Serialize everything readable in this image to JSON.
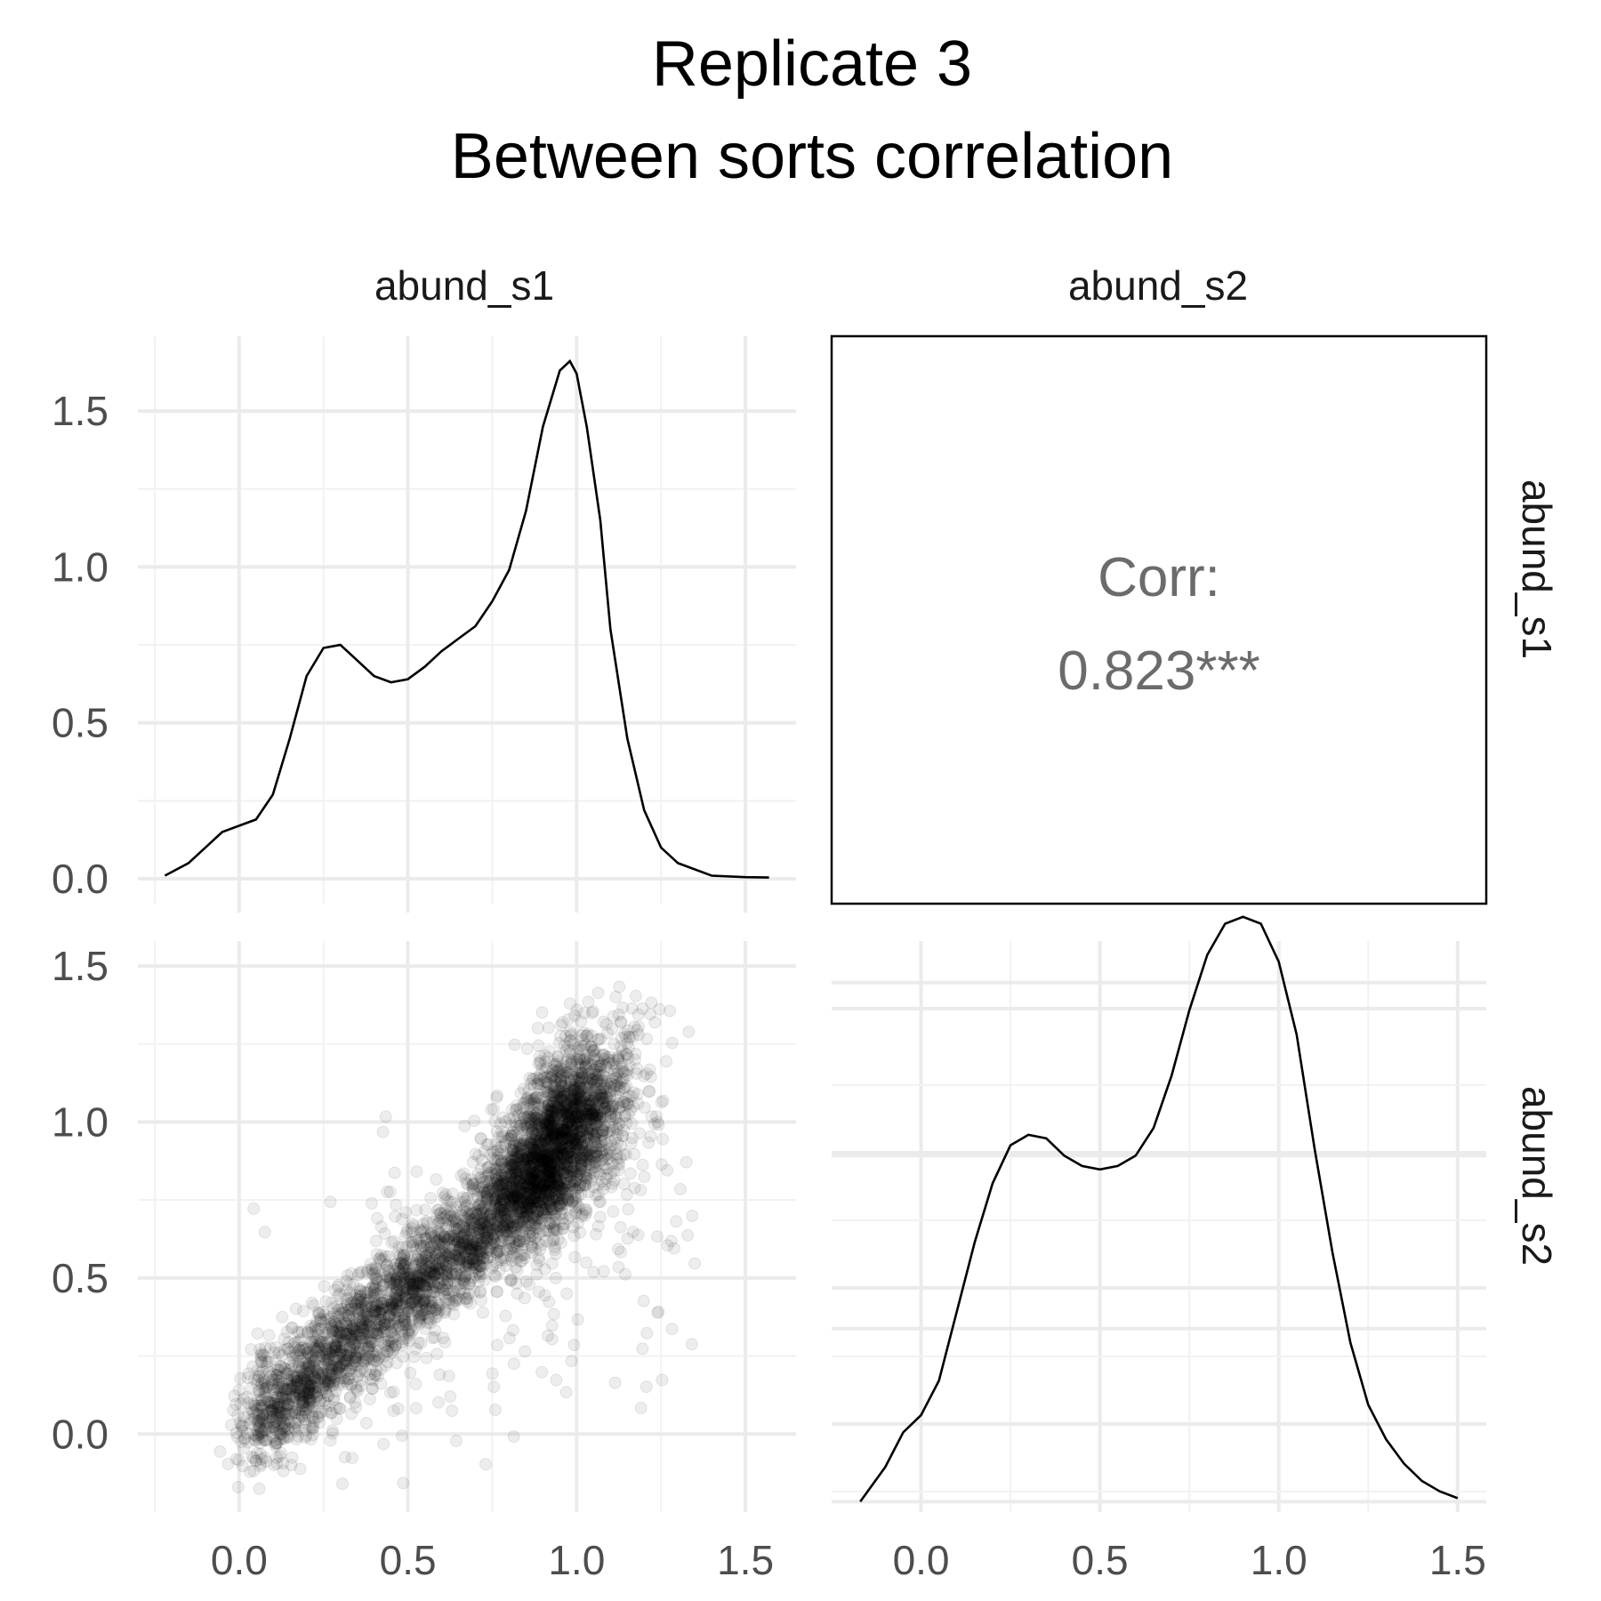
{
  "title": {
    "line1": "Replicate 3",
    "line2": "Between sorts correlation"
  },
  "strips": {
    "columns": [
      "abund_s1",
      "abund_s2"
    ],
    "rows": [
      "abund_s1",
      "abund_s2"
    ]
  },
  "correlation": {
    "label": "Corr:",
    "value": "0.823***"
  },
  "chart_data": {
    "type": "scatter",
    "subtype": "pairs-matrix",
    "variables": [
      "abund_s1",
      "abund_s2"
    ],
    "x_ticks": [
      0.0,
      0.5,
      1.0,
      1.5
    ],
    "x_tick_labels": [
      "0.0",
      "0.5",
      "1.0",
      "1.5"
    ],
    "y_ticks": [
      0.0,
      0.5,
      1.0,
      1.5
    ],
    "y_tick_labels": [
      "0.0",
      "0.5",
      "1.0",
      "1.5"
    ],
    "grid": true,
    "panels": [
      {
        "position": "row1-col1",
        "kind": "density",
        "variable": "abund_s1",
        "xlim": [
          -0.3,
          1.65
        ],
        "ylim": [
          -0.08,
          1.74
        ],
        "x": [
          -0.22,
          -0.15,
          -0.1,
          -0.05,
          0.0,
          0.05,
          0.1,
          0.15,
          0.2,
          0.25,
          0.3,
          0.35,
          0.4,
          0.45,
          0.5,
          0.55,
          0.6,
          0.65,
          0.7,
          0.75,
          0.8,
          0.85,
          0.9,
          0.95,
          0.98,
          1.0,
          1.03,
          1.07,
          1.1,
          1.15,
          1.2,
          1.25,
          1.3,
          1.4,
          1.5,
          1.57
        ],
        "y": [
          0.01,
          0.05,
          0.1,
          0.15,
          0.17,
          0.19,
          0.27,
          0.45,
          0.65,
          0.74,
          0.75,
          0.7,
          0.65,
          0.63,
          0.64,
          0.68,
          0.73,
          0.77,
          0.81,
          0.89,
          0.99,
          1.18,
          1.45,
          1.63,
          1.66,
          1.62,
          1.45,
          1.15,
          0.8,
          0.45,
          0.22,
          0.1,
          0.05,
          0.01,
          0.005,
          0.004
        ]
      },
      {
        "position": "row1-col2",
        "kind": "correlation",
        "label": "Corr:",
        "value": "0.823***"
      },
      {
        "position": "row2-col1",
        "kind": "scatter",
        "x_variable": "abund_s1",
        "y_variable": "abund_s2",
        "xlim": [
          -0.3,
          1.65
        ],
        "ylim": [
          -0.25,
          1.58
        ],
        "n_points_approx": 6000,
        "description": "dense cloud along diagonal from about (-0.1,-0.1) to (1.0,0.95); densest near (0.95,0.95) and (0.3,0.3)"
      },
      {
        "position": "row2-col2",
        "kind": "density",
        "variable": "abund_s2",
        "xlim": [
          -0.25,
          1.58
        ],
        "ylim": [
          -0.03,
          1.62
        ],
        "x": [
          -0.17,
          -0.1,
          -0.05,
          0.0,
          0.05,
          0.1,
          0.15,
          0.2,
          0.25,
          0.3,
          0.35,
          0.4,
          0.45,
          0.5,
          0.55,
          0.6,
          0.65,
          0.7,
          0.75,
          0.8,
          0.85,
          0.9,
          0.95,
          1.0,
          1.05,
          1.1,
          1.15,
          1.2,
          1.25,
          1.3,
          1.35,
          1.4,
          1.45,
          1.5
        ],
        "y": [
          0.0,
          0.1,
          0.2,
          0.25,
          0.35,
          0.55,
          0.75,
          0.92,
          1.03,
          1.06,
          1.05,
          1.0,
          0.97,
          0.96,
          0.97,
          1.0,
          1.08,
          1.23,
          1.42,
          1.58,
          1.67,
          1.69,
          1.67,
          1.56,
          1.35,
          1.02,
          0.72,
          0.46,
          0.28,
          0.18,
          0.11,
          0.06,
          0.03,
          0.01
        ]
      }
    ]
  }
}
